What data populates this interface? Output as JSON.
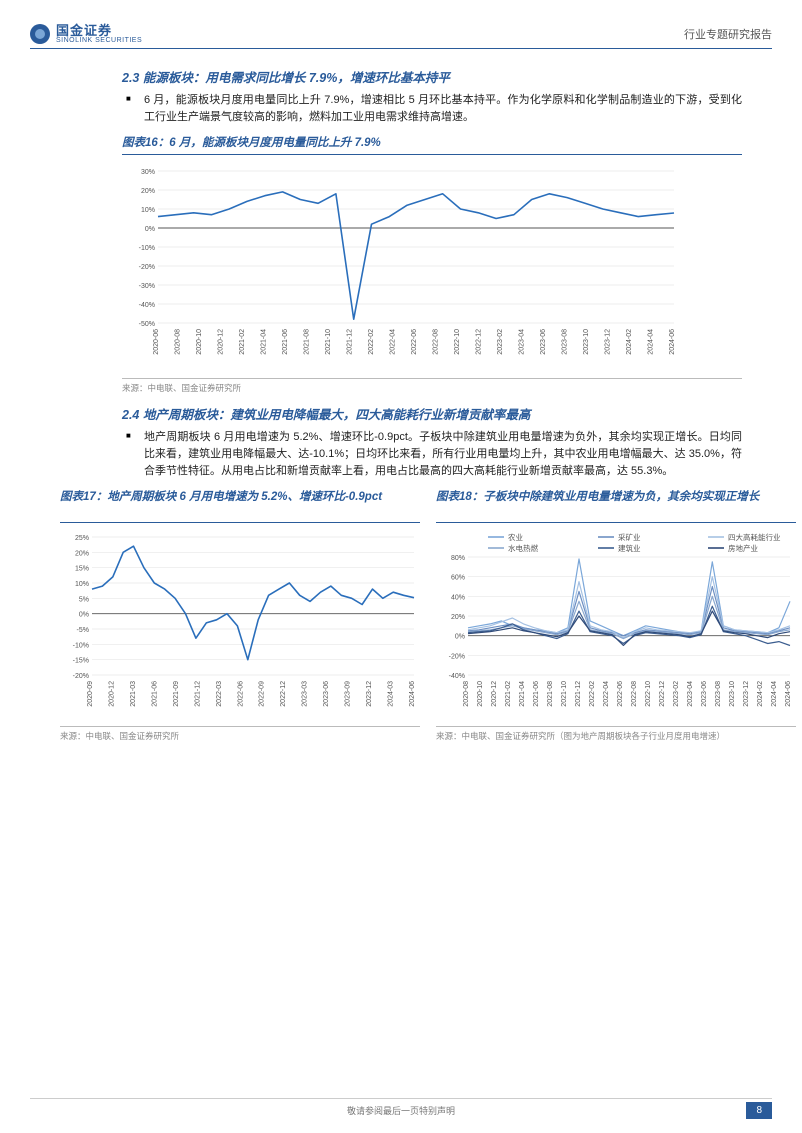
{
  "header": {
    "logo_cn": "国金证券",
    "logo_en": "SINOLINK SECURITIES",
    "doc_type": "行业专题研究报告"
  },
  "section23": {
    "title": "2.3 能源板块：用电需求同比增长 7.9%，增速环比基本持平",
    "body": "6 月，能源板块月度用电量同比上升 7.9%，增速相比 5 月环比基本持平。作为化学原料和化学制品制造业的下游，受到化工行业生产端景气度较高的影响，燃料加工业用电需求维持高增速。"
  },
  "chart16": {
    "title": "图表16：6 月，能源板块月度用电量同比上升 7.9%",
    "type": "line",
    "line_color": "#2a6ebb",
    "line_width": 1.6,
    "grid_color": "#e6e6e6",
    "axis_color": "#555555",
    "tick_font": 7,
    "ylim": [
      -50,
      30
    ],
    "ytick_step": 10,
    "ylabels": [
      "-50%",
      "-40%",
      "-30%",
      "-20%",
      "-10%",
      "0%",
      "10%",
      "20%",
      "30%"
    ],
    "x_labels": [
      "2020-06",
      "2020-08",
      "2020-10",
      "2020-12",
      "2021-02",
      "2021-04",
      "2021-06",
      "2021-08",
      "2021-10",
      "2021-12",
      "2022-02",
      "2022-04",
      "2022-06",
      "2022-08",
      "2022-10",
      "2022-12",
      "2023-02",
      "2023-04",
      "2023-06",
      "2023-08",
      "2023-10",
      "2023-12",
      "2024-02",
      "2024-04",
      "2024-06"
    ],
    "values": [
      6,
      7,
      8,
      7,
      10,
      14,
      17,
      19,
      15,
      13,
      18,
      -48,
      2,
      6,
      12,
      15,
      18,
      10,
      8,
      5,
      7,
      15,
      18,
      16,
      13,
      10,
      8,
      6,
      7,
      7.9
    ],
    "source": "来源：中电联、国金证券研究所"
  },
  "section24": {
    "title": "2.4 地产周期板块：建筑业用电降幅最大，四大高能耗行业新增贡献率最高",
    "body": "地产周期板块 6 月用电增速为 5.2%、增速环比-0.9pct。子板块中除建筑业用电量增速为负外，其余均实现正增长。日均同比来看，建筑业用电降幅最大、达-10.1%；日均环比来看，所有行业用电量均上升，其中农业用电增幅最大、达 35.0%，符合季节性特征。从用电占比和新增贡献率上看，用电占比最高的四大高耗能行业新增贡献率最高，达 55.3%。"
  },
  "chart17": {
    "title": "图表17：地产周期板块 6 月用电增速为 5.2%、增速环比-0.9pct",
    "type": "line",
    "line_color": "#2a6ebb",
    "line_width": 1.6,
    "grid_color": "#e6e6e6",
    "axis_color": "#555555",
    "tick_font": 7,
    "ylim": [
      -20,
      25
    ],
    "ytick_step": 5,
    "ylabels": [
      "-20%",
      "-15%",
      "-10%",
      "-5%",
      "0%",
      "5%",
      "10%",
      "15%",
      "20%",
      "25%"
    ],
    "x_labels": [
      "2020-09",
      "2020-12",
      "2021-03",
      "2021-06",
      "2021-09",
      "2021-12",
      "2022-03",
      "2022-06",
      "2022-09",
      "2022-12",
      "2023-03",
      "2023-06",
      "2023-09",
      "2023-12",
      "2024-03",
      "2024-06"
    ],
    "values": [
      8,
      9,
      12,
      20,
      22,
      15,
      10,
      8,
      5,
      0,
      -8,
      -3,
      -2,
      0,
      -4,
      -15,
      -2,
      6,
      8,
      10,
      6,
      4,
      7,
      9,
      6,
      5,
      3,
      8,
      5,
      7,
      6,
      5.2
    ],
    "source": "来源：中电联、国金证券研究所"
  },
  "chart18": {
    "title": "图表18：子板块中除建筑业用电量增速为负，其余均实现正增长",
    "type": "multiline",
    "grid_color": "#e6e6e6",
    "axis_color": "#555555",
    "tick_font": 7,
    "ylim": [
      -40,
      80
    ],
    "ytick_step": 20,
    "ylabels": [
      "-40%",
      "-20%",
      "0%",
      "20%",
      "40%",
      "60%",
      "80%"
    ],
    "x_labels": [
      "2020-08",
      "2020-10",
      "2020-12",
      "2021-02",
      "2021-04",
      "2021-06",
      "2021-08",
      "2021-10",
      "2021-12",
      "2022-02",
      "2022-04",
      "2022-06",
      "2022-08",
      "2022-10",
      "2022-12",
      "2023-02",
      "2023-04",
      "2023-06",
      "2023-08",
      "2023-10",
      "2023-12",
      "2024-02",
      "2024-04",
      "2024-06"
    ],
    "legend": [
      {
        "label": "农业",
        "color": "#7ba7d9"
      },
      {
        "label": "采矿业",
        "color": "#6d8fc2"
      },
      {
        "label": "四大高耗能行业",
        "color": "#a5c1e3"
      },
      {
        "label": "水电热燃",
        "color": "#8aa8cf"
      },
      {
        "label": "建筑业",
        "color": "#3b5d8f"
      },
      {
        "label": "房地产业",
        "color": "#2f4a78"
      }
    ],
    "series": {
      "农业": [
        8,
        10,
        12,
        15,
        10,
        8,
        6,
        5,
        3,
        8,
        78,
        15,
        10,
        5,
        0,
        5,
        10,
        8,
        6,
        4,
        2,
        5,
        75,
        10,
        6,
        5,
        4,
        3,
        8,
        35
      ],
      "采矿业": [
        5,
        6,
        8,
        10,
        12,
        8,
        6,
        4,
        2,
        5,
        45,
        8,
        5,
        3,
        0,
        3,
        6,
        5,
        4,
        3,
        2,
        4,
        50,
        8,
        5,
        4,
        3,
        2,
        5,
        8
      ],
      "四大高耗能行业": [
        6,
        8,
        10,
        14,
        18,
        12,
        8,
        5,
        3,
        6,
        55,
        10,
        6,
        4,
        -2,
        4,
        8,
        6,
        5,
        4,
        3,
        5,
        60,
        10,
        6,
        5,
        4,
        3,
        6,
        10
      ],
      "水电热燃": [
        4,
        5,
        6,
        8,
        10,
        7,
        5,
        3,
        1,
        4,
        35,
        6,
        4,
        2,
        -3,
        2,
        5,
        4,
        3,
        2,
        1,
        3,
        40,
        6,
        4,
        3,
        2,
        1,
        4,
        6
      ],
      "建筑业": [
        3,
        4,
        5,
        8,
        12,
        6,
        3,
        0,
        -3,
        2,
        25,
        4,
        2,
        0,
        -8,
        0,
        3,
        2,
        1,
        0,
        -2,
        1,
        30,
        4,
        2,
        0,
        -4,
        -8,
        -6,
        -10
      ],
      "房地产业": [
        2,
        3,
        4,
        6,
        8,
        5,
        3,
        1,
        -1,
        3,
        20,
        5,
        3,
        1,
        -10,
        1,
        4,
        3,
        2,
        1,
        -1,
        2,
        25,
        5,
        3,
        2,
        0,
        -2,
        2,
        4
      ]
    },
    "source": "来源：中电联、国金证券研究所（图为地产周期板块各子行业月度用电增速）"
  },
  "footer": {
    "disclaimer": "敬请参阅最后一页特别声明",
    "page": "8"
  }
}
